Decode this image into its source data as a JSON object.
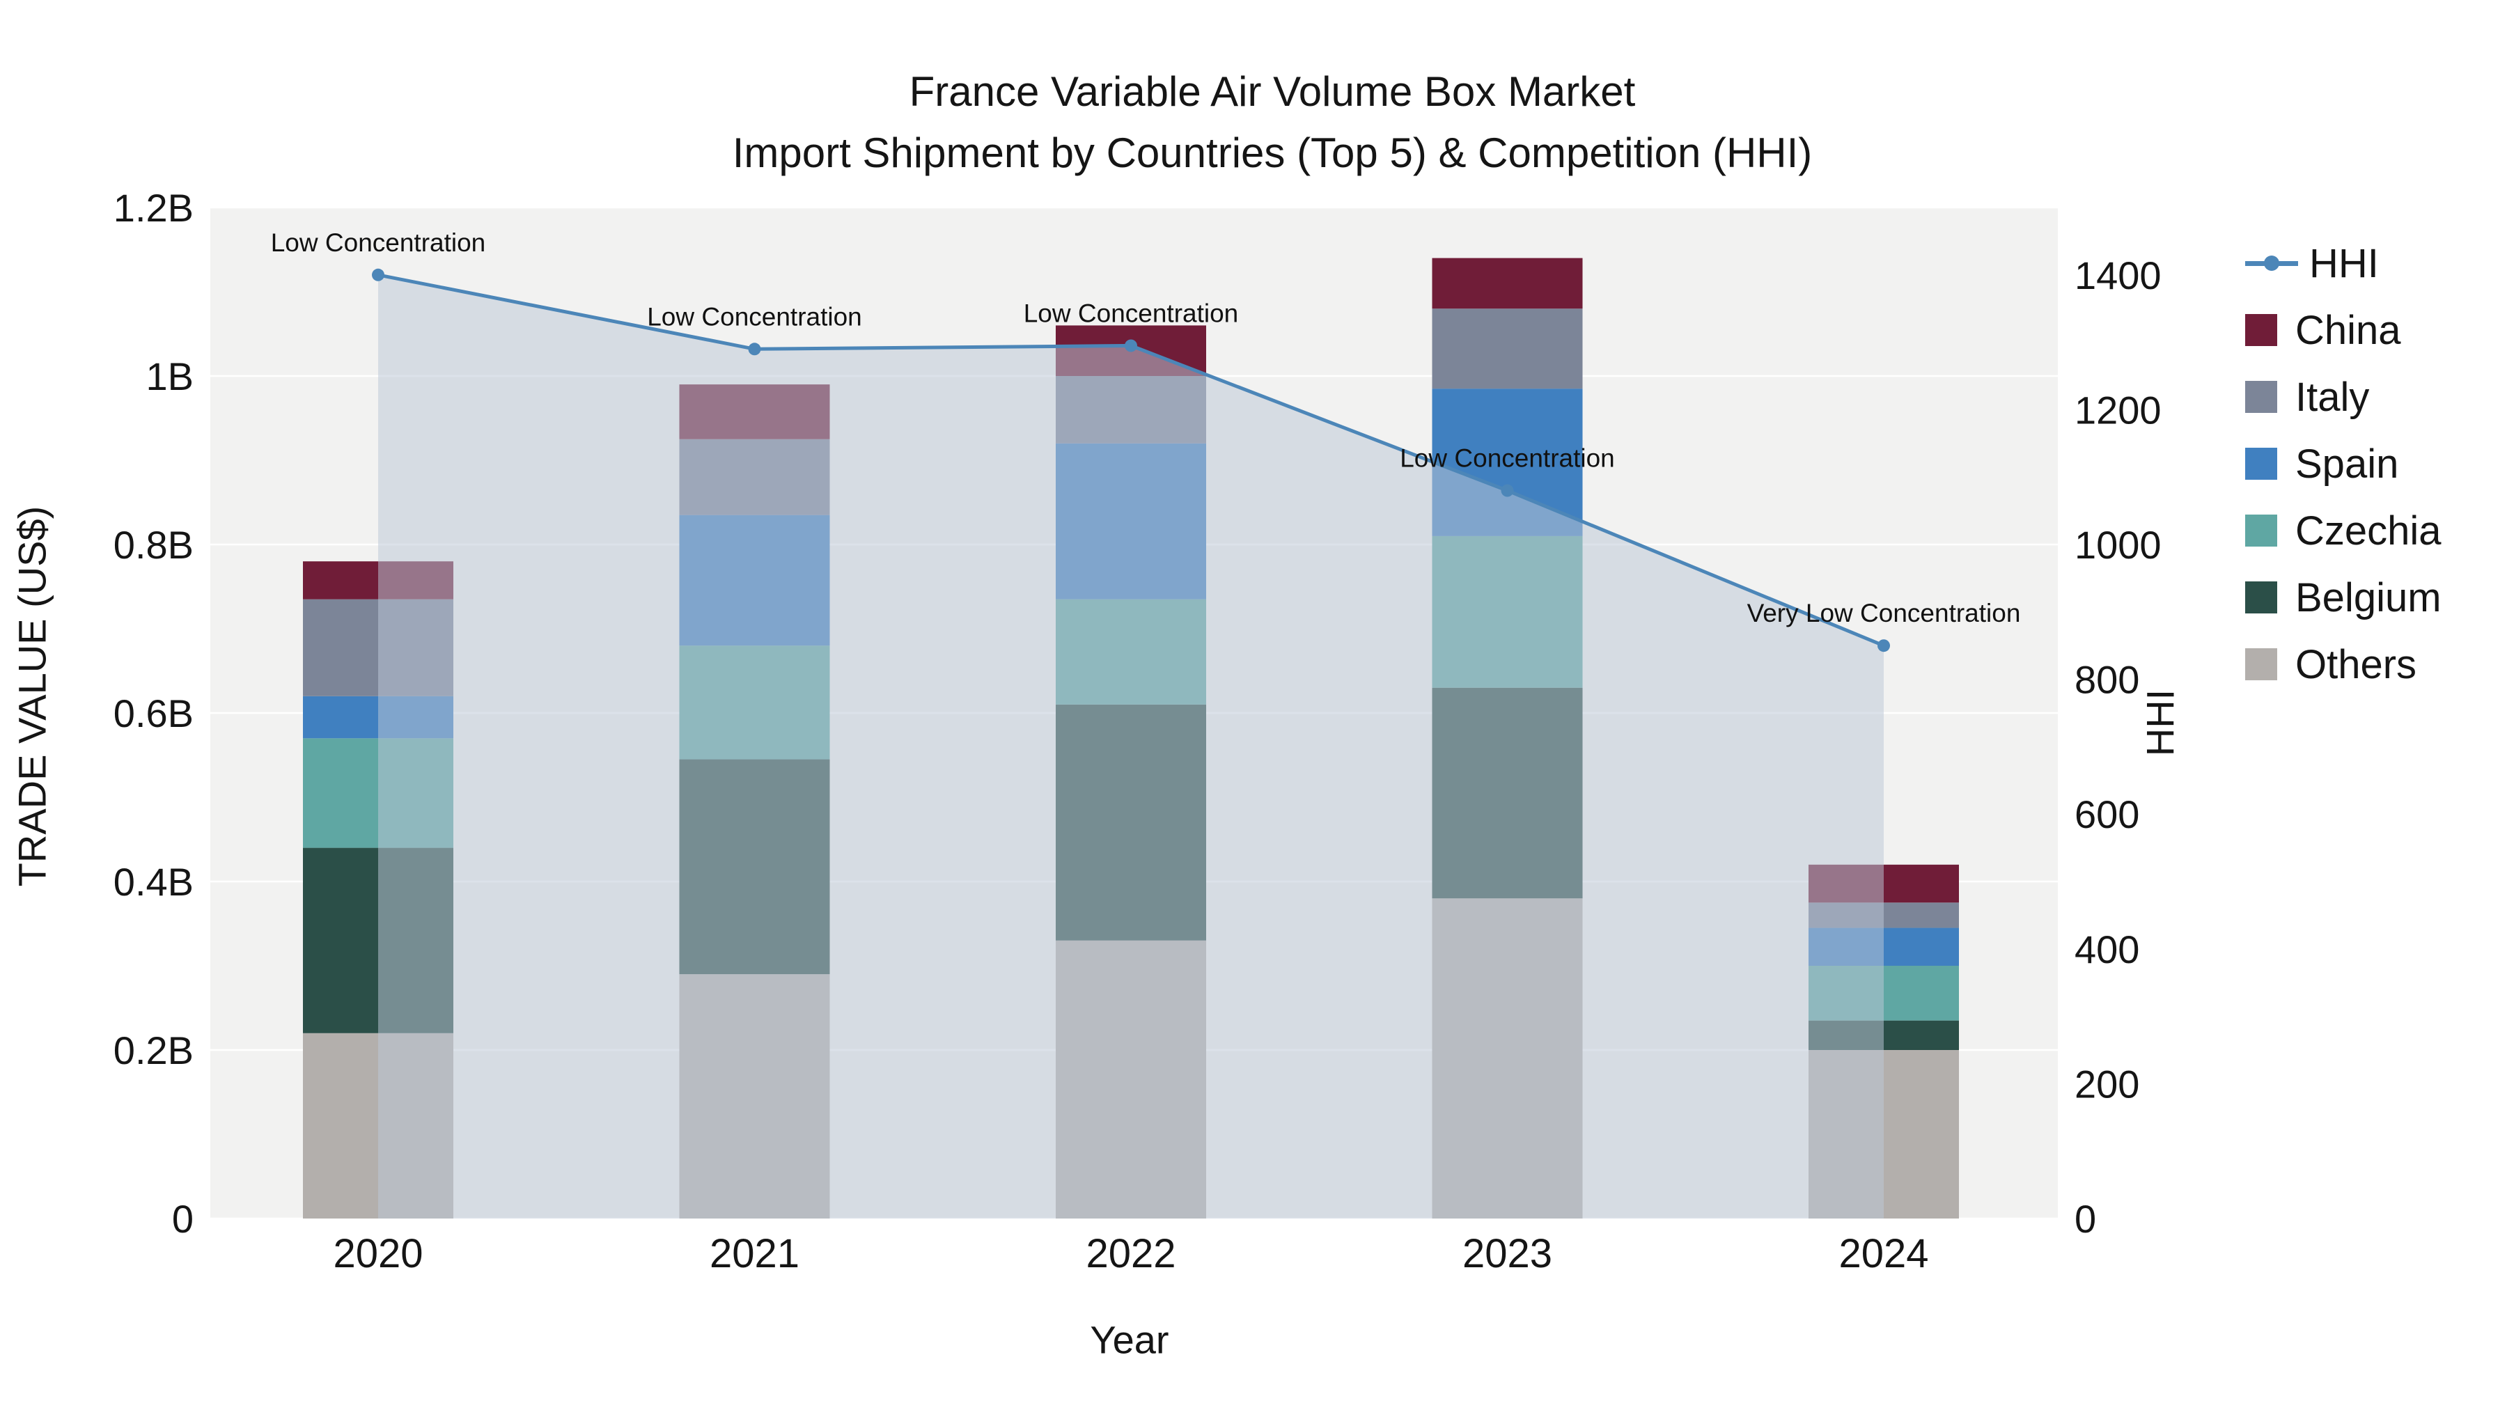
{
  "title": {
    "line1": "France Variable Air Volume Box Market",
    "line2": "Import Shipment by Countries (Top 5) & Competition (HHI)"
  },
  "axes": {
    "x_title": "Year",
    "y_left_title": "TRADE VALUE (US$)",
    "y_right_title": "HHI"
  },
  "legend": {
    "items": [
      {
        "label": "HHI",
        "color": "#4c86b8",
        "type": "line"
      },
      {
        "label": "China",
        "color": "#701d38",
        "type": "box"
      },
      {
        "label": "Italy",
        "color": "#7c8598",
        "type": "box"
      },
      {
        "label": "Spain",
        "color": "#4080c0",
        "type": "box"
      },
      {
        "label": "Czechia",
        "color": "#5fa7a3",
        "type": "box"
      },
      {
        "label": "Belgium",
        "color": "#2b4f48",
        "type": "box"
      },
      {
        "label": "Others",
        "color": "#b3afac",
        "type": "box"
      }
    ]
  },
  "chart_data": {
    "type": "bar",
    "subtype": "stacked-bars-with-line-area-overlay",
    "title": "France Variable Air Volume Box Market Import Shipment by Countries (Top 5) & Competition (HHI)",
    "xlabel": "Year",
    "categories": [
      "2020",
      "2021",
      "2022",
      "2023",
      "2024"
    ],
    "plot_bg": "#f2f2f1",
    "grid": true,
    "legend_position": "right",
    "y_left": {
      "label": "TRADE VALUE (US$)",
      "unit": "billions US$",
      "range": [
        0,
        1.2
      ],
      "ticks": [
        {
          "value": 0,
          "label": "0"
        },
        {
          "value": 0.2,
          "label": "0.2B"
        },
        {
          "value": 0.4,
          "label": "0.4B"
        },
        {
          "value": 0.6,
          "label": "0.6B"
        },
        {
          "value": 0.8,
          "label": "0.8B"
        },
        {
          "value": 1.0,
          "label": "1B"
        },
        {
          "value": 1.2,
          "label": "1.2B"
        }
      ]
    },
    "y_right": {
      "label": "HHI",
      "range": [
        0,
        1500
      ],
      "ticks": [
        {
          "value": 0,
          "label": "0"
        },
        {
          "value": 200,
          "label": "200"
        },
        {
          "value": 400,
          "label": "400"
        },
        {
          "value": 600,
          "label": "600"
        },
        {
          "value": 800,
          "label": "800"
        },
        {
          "value": 1000,
          "label": "1000"
        },
        {
          "value": 1200,
          "label": "1200"
        },
        {
          "value": 1400,
          "label": "1400"
        }
      ]
    },
    "series": [
      {
        "name": "Others",
        "color": "#b3afac",
        "values": [
          0.22,
          0.29,
          0.33,
          0.38,
          0.2
        ]
      },
      {
        "name": "Belgium",
        "color": "#2b4f48",
        "values": [
          0.22,
          0.255,
          0.28,
          0.25,
          0.035
        ]
      },
      {
        "name": "Czechia",
        "color": "#5fa7a3",
        "values": [
          0.13,
          0.135,
          0.125,
          0.18,
          0.065
        ]
      },
      {
        "name": "Spain",
        "color": "#4080c0",
        "values": [
          0.05,
          0.155,
          0.185,
          0.175,
          0.045
        ]
      },
      {
        "name": "Italy",
        "color": "#7c8598",
        "values": [
          0.115,
          0.09,
          0.08,
          0.095,
          0.03
        ]
      },
      {
        "name": "China",
        "color": "#701d38",
        "values": [
          0.045,
          0.065,
          0.06,
          0.06,
          0.045
        ]
      }
    ],
    "hhi": {
      "name": "HHI",
      "axis": "right",
      "color": "#4c86b8",
      "area_fill": "#bcc7d6",
      "area_opacity": 0.52,
      "values": [
        1400,
        1290,
        1295,
        1080,
        850
      ],
      "annotations": [
        "Low Concentration",
        "Low Concentration",
        "Low Concentration",
        "Low Concentration",
        "Very Low Concentration"
      ]
    }
  }
}
